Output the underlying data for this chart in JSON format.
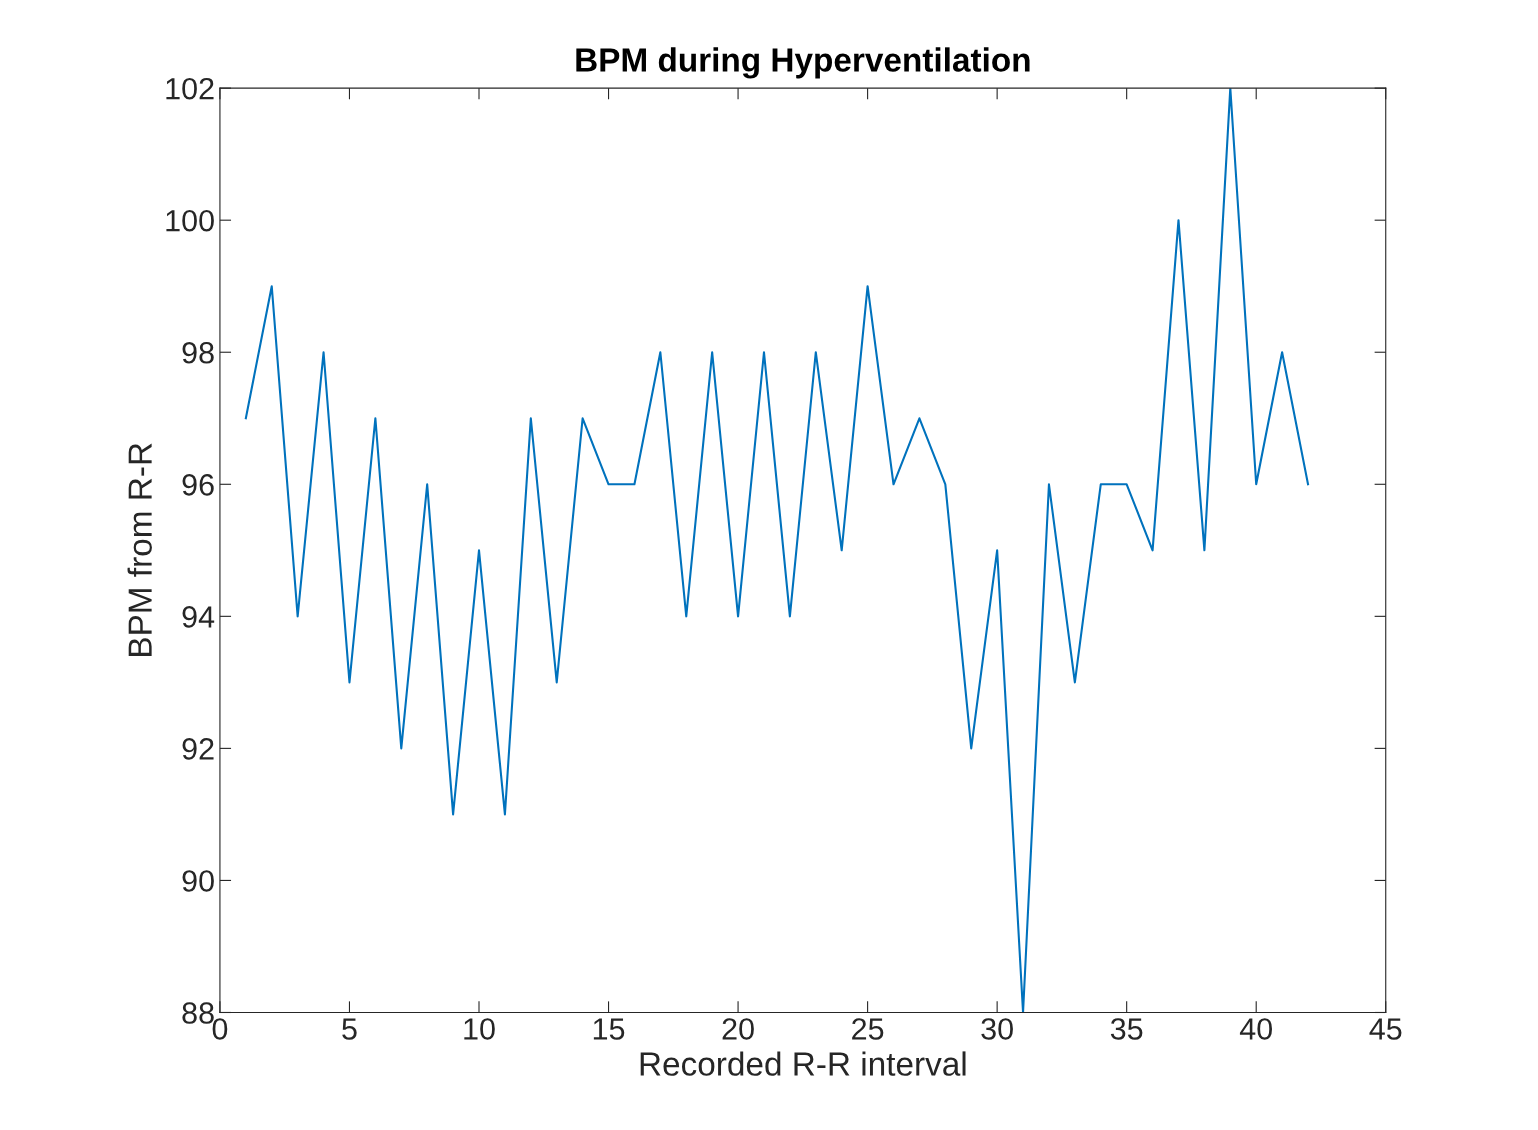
{
  "chart_data": {
    "type": "line",
    "title": "BPM during Hyperventilation",
    "xlabel": "Recorded R-R interval",
    "ylabel": "BPM from R-R",
    "x": [
      1,
      2,
      3,
      4,
      5,
      6,
      7,
      8,
      9,
      10,
      11,
      12,
      13,
      14,
      15,
      16,
      17,
      18,
      19,
      20,
      21,
      22,
      23,
      24,
      25,
      26,
      27,
      28,
      29,
      30,
      31,
      32,
      33,
      34,
      35,
      36,
      37,
      38,
      39,
      40,
      41,
      42
    ],
    "series": [
      {
        "color": "#0072bd",
        "values": [
          97,
          99,
          94,
          98,
          93,
          97,
          92,
          96,
          91,
          95,
          91,
          97,
          93,
          97,
          96,
          96,
          98,
          94,
          98,
          94,
          98,
          94,
          98,
          95,
          99,
          96,
          97,
          96,
          92,
          95,
          88,
          96,
          93,
          96,
          96,
          95,
          100,
          95,
          102,
          96,
          98,
          96
        ]
      }
    ],
    "xlim": [
      0,
      45
    ],
    "xticks": [
      0,
      5,
      10,
      15,
      20,
      25,
      30,
      35,
      40,
      45
    ],
    "ylim": [
      88,
      102
    ],
    "yticks": [
      88,
      90,
      92,
      94,
      96,
      98,
      100,
      102
    ],
    "grid": false,
    "legend": false,
    "marker": "none",
    "line_style": "solid"
  }
}
